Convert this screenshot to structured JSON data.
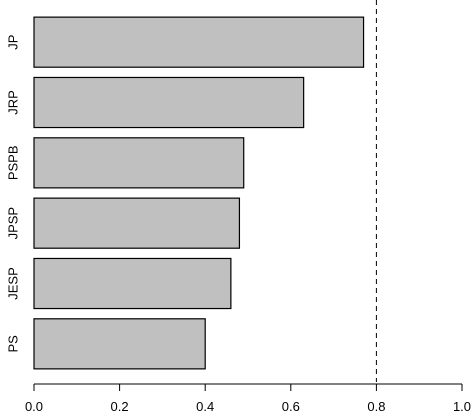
{
  "chart_data": {
    "type": "bar",
    "orientation": "horizontal",
    "categories": [
      "PS",
      "JESP",
      "JPSP",
      "PSPB",
      "JRP",
      "JP"
    ],
    "values": [
      0.4,
      0.46,
      0.48,
      0.49,
      0.63,
      0.77
    ],
    "xlim": [
      0.0,
      1.0
    ],
    "x_ticks": [
      "0.0",
      "0.2",
      "0.4",
      "0.6",
      "0.8",
      "1.0"
    ],
    "x_tick_values": [
      0.0,
      0.2,
      0.4,
      0.6,
      0.8,
      1.0
    ],
    "reference_line": 0.8,
    "reference_line_style": "dashed",
    "title": "",
    "xlabel": "",
    "ylabel": "",
    "grid": false,
    "colors": {
      "bar_fill": "#c0c0c0",
      "bar_stroke": "#000000"
    }
  }
}
